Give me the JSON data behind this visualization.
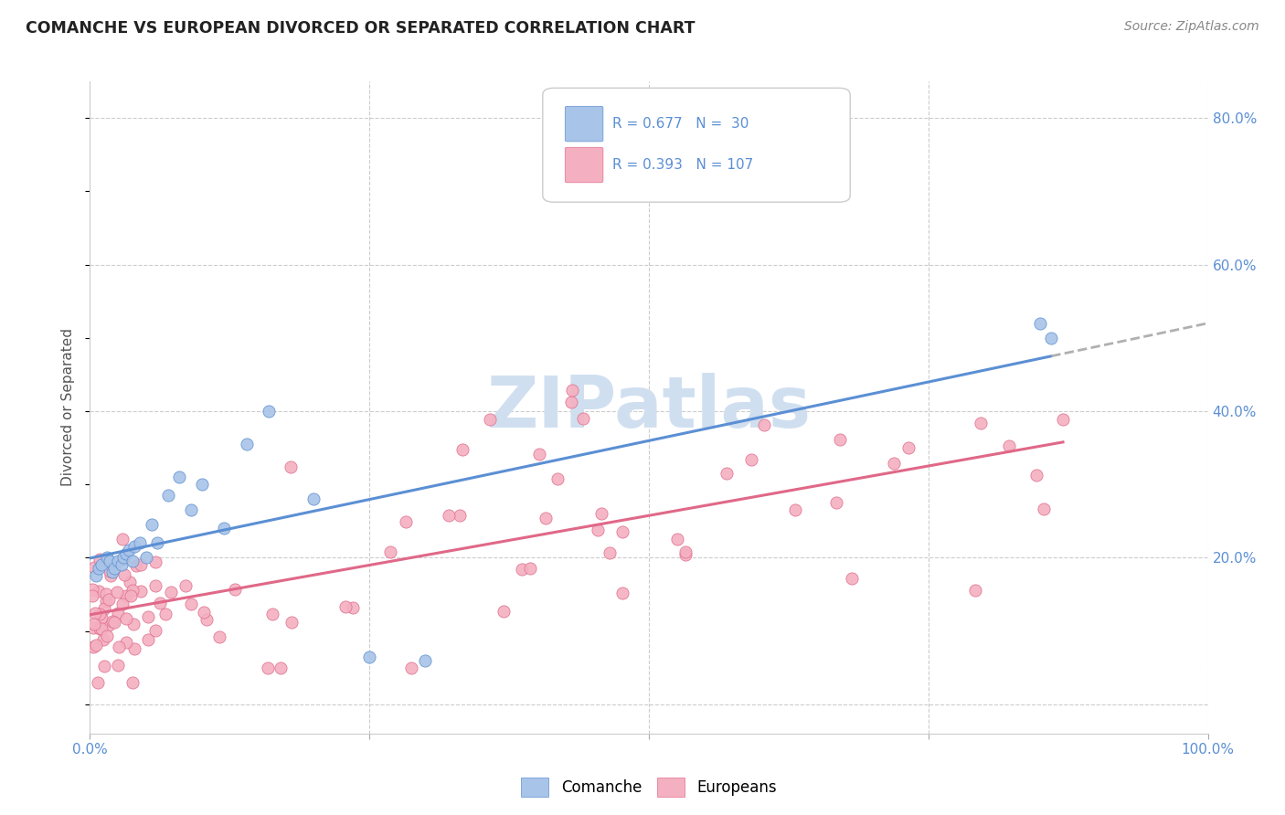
{
  "title": "COMANCHE VS EUROPEAN DIVORCED OR SEPARATED CORRELATION CHART",
  "source": "Source: ZipAtlas.com",
  "ylabel": "Divorced or Separated",
  "comanche_color": "#a8c4e8",
  "comanche_edge": "#6090d0",
  "european_color": "#f4b0c0",
  "european_edge": "#e07090",
  "line_color_comanche": "#5b8fd4",
  "line_color_european": "#e06888",
  "dashed_color": "#b0b0b0",
  "grid_color": "#cccccc",
  "tick_color": "#5b8fd4",
  "title_color": "#222222",
  "source_color": "#888888",
  "watermark_color": "#d0dff0",
  "legend_R1": "R = 0.677",
  "legend_N1": "N =  30",
  "legend_R2": "R = 0.393",
  "legend_N2": "N = 107"
}
